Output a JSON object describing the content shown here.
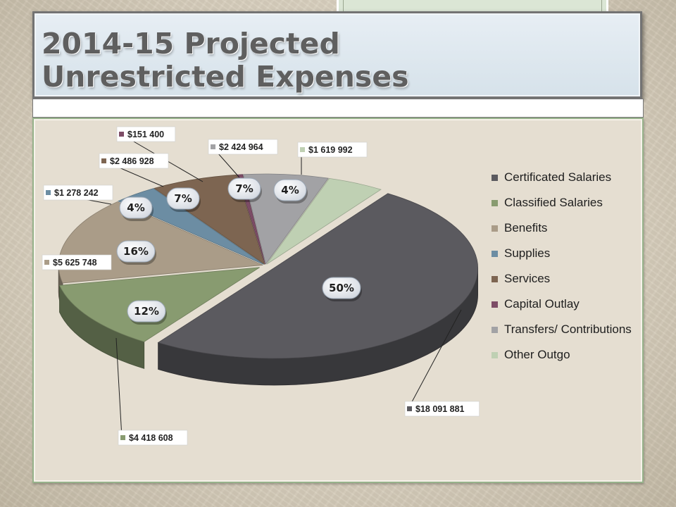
{
  "title": {
    "line1": "2014-15 Projected",
    "line2": "Unrestricted Expenses"
  },
  "chart_data": {
    "type": "pie",
    "style": "3d-exploded",
    "legend_position": "right",
    "slices": [
      {
        "name": "Certificated Salaries",
        "value": 18091881,
        "value_label": "$18 091 881",
        "percent_label": "50%",
        "color": "#5b5a5f"
      },
      {
        "name": "Classified Salaries",
        "value": 4418608,
        "value_label": "$4 418 608",
        "percent_label": "12%",
        "color": "#889b70"
      },
      {
        "name": "Benefits",
        "value": 5625748,
        "value_label": "$5 625 748",
        "percent_label": "16%",
        "color": "#aa9c88"
      },
      {
        "name": "Supplies",
        "value": 1278242,
        "value_label": "$1 278 242",
        "percent_label": "4%",
        "color": "#6c8da3"
      },
      {
        "name": "Services",
        "value": 2486928,
        "value_label": "$2 486 928",
        "percent_label": "7%",
        "color": "#7d6551"
      },
      {
        "name": "Capital Outlay",
        "value": 151400,
        "value_label": "$151 400",
        "percent_label": "",
        "color": "#7d4c66"
      },
      {
        "name": "Transfers/ Contributions",
        "value": 2424964,
        "value_label": "$2 424 964",
        "percent_label": "7%",
        "color": "#a2a2a5"
      },
      {
        "name": "Other Outgo",
        "value": 1619992,
        "value_label": "$1 619 992",
        "percent_label": "4%",
        "color": "#bfd0b3"
      }
    ]
  }
}
